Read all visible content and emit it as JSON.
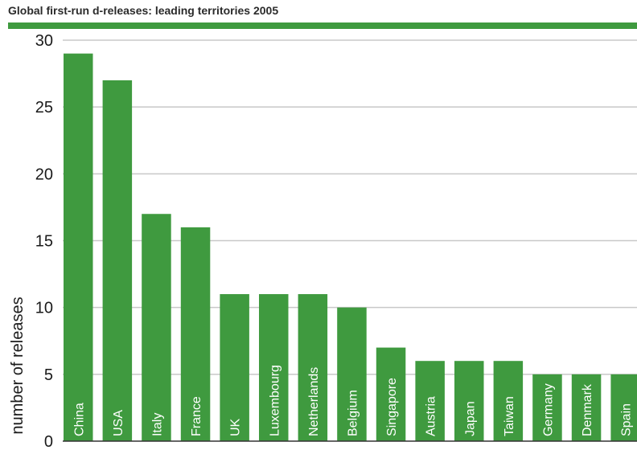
{
  "colors": {
    "bar": "#3f9a3f",
    "title_rule": "#3f9a3f",
    "grid": "#c8c8c8",
    "axis": "#333333"
  },
  "chart_data": {
    "type": "bar",
    "title": "Global first-run d-releases: leading territories 2005",
    "xlabel": "",
    "ylabel": "number of releases",
    "ylim": [
      0,
      30
    ],
    "yticks": [
      0,
      5,
      10,
      15,
      20,
      25,
      30
    ],
    "grid": true,
    "categories": [
      "China",
      "USA",
      "Italy",
      "France",
      "UK",
      "Luxembourg",
      "Netherlands",
      "Belgium",
      "Singapore",
      "Austria",
      "Japan",
      "Taiwan",
      "Germany",
      "Denmark",
      "Spain"
    ],
    "values": [
      29,
      27,
      17,
      16,
      11,
      11,
      11,
      10,
      7,
      6,
      6,
      6,
      5,
      5,
      5
    ]
  }
}
